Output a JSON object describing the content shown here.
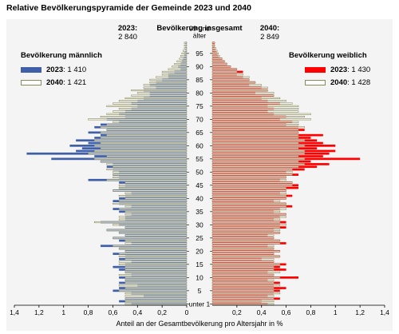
{
  "chart_data": {
    "type": "bar",
    "title": "Relative Bevölkerungspyramide der Gemeinde 2023 und 2040",
    "total_label": "Bevölkerung insgesamt",
    "total_2023": "2 840",
    "total_2040": "2 849",
    "year_2023": "2023",
    "year_2040": "2040",
    "male_label": "Bevölkerung männlich",
    "female_label": "Bevölkerung weiblich",
    "male_2023_total": "1 410",
    "male_2040_total": "1 421",
    "female_2023_total": "1 430",
    "female_2040_total": "1 428",
    "xlabel": "Anteil an der Gesamtbevölkerung pro Altersjahr in %",
    "xlim": [
      0,
      1.4
    ],
    "xticks": [
      "1,4",
      "1,2",
      "1",
      "0,8",
      "0,6",
      "0,4",
      "0,2",
      "0",
      "0,2",
      "0,4",
      "0,6",
      "0,8",
      "1",
      "1,2",
      "1,4"
    ],
    "age_ticks": [
      "unter 1",
      "5",
      "10",
      "15",
      "20",
      "25",
      "30",
      "35",
      "40",
      "45",
      "50",
      "55",
      "60",
      "65",
      "70",
      "75",
      "80",
      "85",
      "90",
      "95",
      "99 und älter"
    ],
    "ages": [
      0,
      1,
      2,
      3,
      4,
      5,
      6,
      7,
      8,
      9,
      10,
      11,
      12,
      13,
      14,
      15,
      16,
      17,
      18,
      19,
      20,
      21,
      22,
      23,
      24,
      25,
      26,
      27,
      28,
      29,
      30,
      31,
      32,
      33,
      34,
      35,
      36,
      37,
      38,
      39,
      40,
      41,
      42,
      43,
      44,
      45,
      46,
      47,
      48,
      49,
      50,
      51,
      52,
      53,
      54,
      55,
      56,
      57,
      58,
      59,
      60,
      61,
      62,
      63,
      64,
      65,
      66,
      67,
      68,
      69,
      70,
      71,
      72,
      73,
      74,
      75,
      76,
      77,
      78,
      79,
      80,
      81,
      82,
      83,
      84,
      85,
      86,
      87,
      88,
      89,
      90,
      91,
      92,
      93,
      94,
      95,
      96,
      97,
      98,
      99
    ],
    "series": [
      {
        "name": "männlich 2023",
        "color": "#3f5fa8",
        "values": [
          0.45,
          0.55,
          0.5,
          0.35,
          0.45,
          0.6,
          0.55,
          0.4,
          0.55,
          0.5,
          0.55,
          0.45,
          0.5,
          0.55,
          0.6,
          0.5,
          0.45,
          0.55,
          0.5,
          0.6,
          0.5,
          0.55,
          0.7,
          0.45,
          0.55,
          0.6,
          0.5,
          0.55,
          0.65,
          0.5,
          0.55,
          0.7,
          0.5,
          0.5,
          0.45,
          0.55,
          0.6,
          0.45,
          0.55,
          0.6,
          0.55,
          0.5,
          0.45,
          0.6,
          0.55,
          0.5,
          0.55,
          0.8,
          0.55,
          0.6,
          0.55,
          0.6,
          0.65,
          0.6,
          0.7,
          1.1,
          0.75,
          1.3,
          0.9,
          0.85,
          0.95,
          0.8,
          0.9,
          0.75,
          0.7,
          0.8,
          0.65,
          0.75,
          0.7,
          0.55,
          0.65,
          0.5,
          0.55,
          0.5,
          0.45,
          0.4,
          0.45,
          0.4,
          0.35,
          0.3,
          0.3,
          0.35,
          0.25,
          0.3,
          0.25,
          0.2,
          0.15,
          0.15,
          0.1,
          0.05,
          0.07,
          0.05,
          0.04,
          0.03,
          0.02,
          0.02,
          0.01,
          0.01,
          0.01,
          0.01
        ]
      },
      {
        "name": "männlich 2040",
        "color": "#ffffff",
        "values": [
          0.5,
          0.5,
          0.5,
          0.5,
          0.5,
          0.55,
          0.5,
          0.55,
          0.5,
          0.5,
          0.5,
          0.55,
          0.5,
          0.5,
          0.5,
          0.55,
          0.55,
          0.5,
          0.55,
          0.55,
          0.5,
          0.55,
          0.6,
          0.5,
          0.5,
          0.6,
          0.5,
          0.55,
          0.65,
          0.5,
          0.6,
          0.75,
          0.55,
          0.55,
          0.5,
          0.5,
          0.55,
          0.5,
          0.6,
          0.55,
          0.5,
          0.55,
          0.5,
          0.6,
          0.55,
          0.55,
          0.5,
          0.65,
          0.6,
          0.6,
          0.6,
          0.65,
          0.6,
          0.65,
          0.7,
          0.75,
          0.65,
          0.8,
          0.75,
          0.7,
          0.75,
          0.7,
          0.75,
          0.7,
          0.65,
          0.7,
          0.65,
          0.7,
          0.65,
          0.6,
          0.8,
          0.7,
          0.65,
          0.6,
          0.55,
          0.65,
          0.6,
          0.55,
          0.5,
          0.45,
          0.4,
          0.45,
          0.35,
          0.35,
          0.3,
          0.3,
          0.25,
          0.2,
          0.2,
          0.15,
          0.12,
          0.1,
          0.08,
          0.06,
          0.05,
          0.04,
          0.03,
          0.02,
          0.02,
          0.02
        ]
      },
      {
        "name": "weiblich 2023",
        "color": "#ff0000",
        "values": [
          0.45,
          0.4,
          0.55,
          0.45,
          0.5,
          0.55,
          0.6,
          0.5,
          0.55,
          0.45,
          0.7,
          0.5,
          0.45,
          0.6,
          0.55,
          0.6,
          0.5,
          0.4,
          0.55,
          0.5,
          0.55,
          0.5,
          0.45,
          0.6,
          0.55,
          0.5,
          0.45,
          0.55,
          0.5,
          0.6,
          0.55,
          0.6,
          0.5,
          0.55,
          0.6,
          0.5,
          0.55,
          0.65,
          0.6,
          0.5,
          0.6,
          0.65,
          0.55,
          0.6,
          0.7,
          0.7,
          0.65,
          0.55,
          0.6,
          0.7,
          0.6,
          0.75,
          0.85,
          0.95,
          0.8,
          1.2,
          0.9,
          0.95,
          1.0,
          0.85,
          1.0,
          0.9,
          0.85,
          0.8,
          0.9,
          0.7,
          0.75,
          0.7,
          0.6,
          0.65,
          0.55,
          0.6,
          0.5,
          0.45,
          0.5,
          0.45,
          0.55,
          0.45,
          0.4,
          0.5,
          0.35,
          0.45,
          0.4,
          0.3,
          0.35,
          0.3,
          0.25,
          0.2,
          0.25,
          0.2,
          0.15,
          0.12,
          0.1,
          0.08,
          0.05,
          0.04,
          0.03,
          0.02,
          0.02,
          0.02
        ]
      },
      {
        "name": "weiblich 2040",
        "color": "#ffffff",
        "values": [
          0.5,
          0.5,
          0.5,
          0.5,
          0.55,
          0.5,
          0.5,
          0.55,
          0.5,
          0.5,
          0.55,
          0.5,
          0.55,
          0.5,
          0.5,
          0.55,
          0.5,
          0.5,
          0.55,
          0.5,
          0.55,
          0.5,
          0.5,
          0.55,
          0.55,
          0.5,
          0.5,
          0.55,
          0.55,
          0.55,
          0.6,
          0.55,
          0.55,
          0.6,
          0.6,
          0.55,
          0.6,
          0.6,
          0.6,
          0.55,
          0.6,
          0.6,
          0.6,
          0.6,
          0.6,
          0.65,
          0.65,
          0.6,
          0.6,
          0.65,
          0.65,
          0.65,
          0.7,
          0.75,
          0.7,
          0.75,
          0.7,
          0.75,
          0.75,
          0.7,
          0.75,
          0.7,
          0.75,
          0.7,
          0.7,
          0.7,
          0.7,
          0.75,
          0.7,
          0.7,
          0.8,
          0.75,
          0.8,
          0.7,
          0.7,
          0.7,
          0.65,
          0.6,
          0.55,
          0.5,
          0.5,
          0.45,
          0.45,
          0.4,
          0.35,
          0.3,
          0.3,
          0.25,
          0.2,
          0.2,
          0.15,
          0.12,
          0.1,
          0.08,
          0.06,
          0.05,
          0.04,
          0.03,
          0.02,
          0.02
        ]
      }
    ]
  }
}
